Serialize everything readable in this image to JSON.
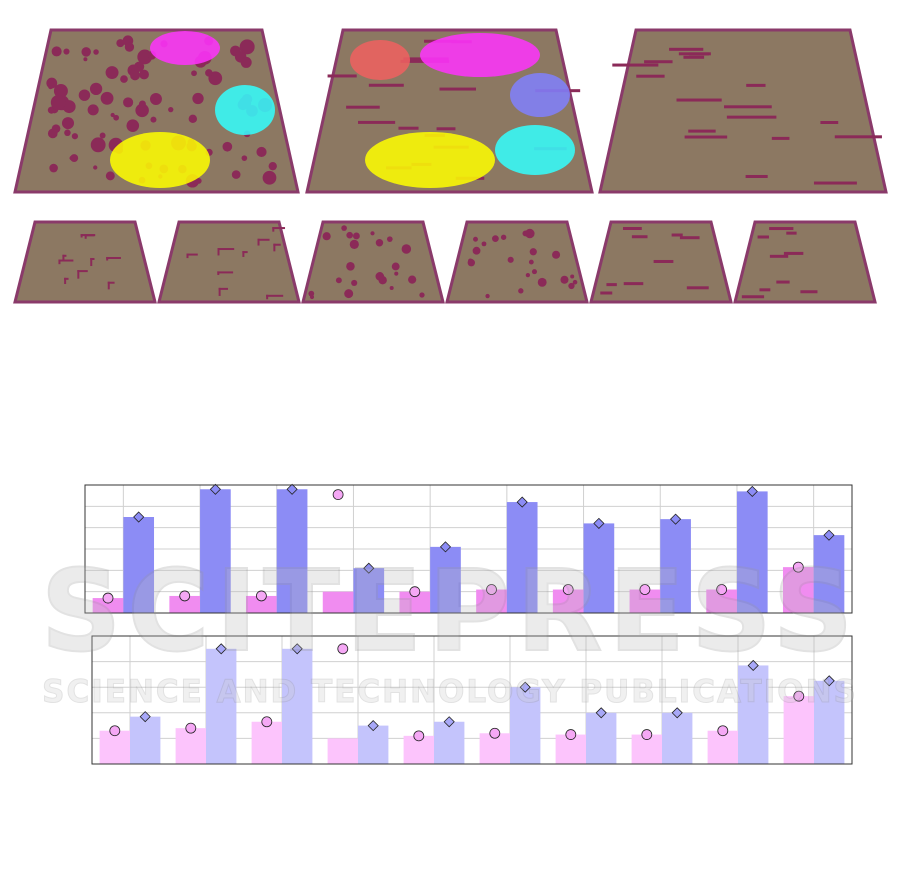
{
  "watermark": {
    "line1": "SCITEPRESS",
    "line2": "SCIENCE AND TECHNOLOGY PUBLICATIONS"
  },
  "chart_data": [
    {
      "type": "bar",
      "categories": [
        null,
        null,
        null,
        null,
        null,
        null,
        null,
        null,
        null,
        null
      ],
      "ylim": [
        0,
        6
      ],
      "yticks": [
        0,
        1,
        2,
        3,
        4,
        5,
        6
      ],
      "grid": true,
      "series": [
        {
          "color": "#f08cf0",
          "values": [
            0.7,
            0.8,
            0.8,
            1.0,
            1.0,
            1.1,
            1.1,
            1.1,
            1.1,
            2.15
          ]
        },
        {
          "color": "#8c8cf5",
          "values": [
            4.5,
            5.8,
            5.8,
            2.1,
            3.1,
            5.2,
            4.2,
            4.4,
            5.7,
            3.65
          ]
        }
      ],
      "markers": [
        {
          "shape": "circle",
          "color": "#f5a8f5",
          "values": [
            0.7,
            0.8,
            0.8,
            5.55,
            1.0,
            1.1,
            1.1,
            1.1,
            1.1,
            2.15
          ]
        },
        {
          "shape": "diamond",
          "color": "#8c8cf5",
          "values": [
            4.5,
            5.8,
            5.8,
            2.1,
            3.1,
            5.2,
            4.2,
            4.4,
            5.7,
            3.65
          ]
        }
      ]
    },
    {
      "type": "bar",
      "categories": [
        null,
        null,
        null,
        null,
        null,
        null,
        null,
        null,
        null,
        null
      ],
      "ylim": [
        0,
        5
      ],
      "yticks": [
        0,
        1,
        2,
        3,
        4,
        5
      ],
      "grid": true,
      "series": [
        {
          "color": "#fcc4fc",
          "values": [
            1.3,
            1.4,
            1.65,
            1.0,
            1.1,
            1.2,
            1.15,
            1.15,
            1.3,
            2.65
          ]
        },
        {
          "color": "#c4c4fc",
          "values": [
            1.85,
            4.5,
            4.5,
            1.5,
            1.65,
            3.0,
            2.0,
            2.0,
            3.85,
            3.25
          ]
        }
      ],
      "markers": [
        {
          "shape": "circle",
          "color": "#f5a8f5",
          "values": [
            1.3,
            1.4,
            1.65,
            4.5,
            1.1,
            1.2,
            1.15,
            1.15,
            1.3,
            2.65
          ]
        },
        {
          "shape": "diamond",
          "color": "#a8a8f8",
          "values": [
            1.85,
            4.5,
            4.5,
            1.5,
            1.65,
            3.0,
            2.0,
            2.0,
            3.85,
            3.25
          ]
        }
      ]
    }
  ]
}
